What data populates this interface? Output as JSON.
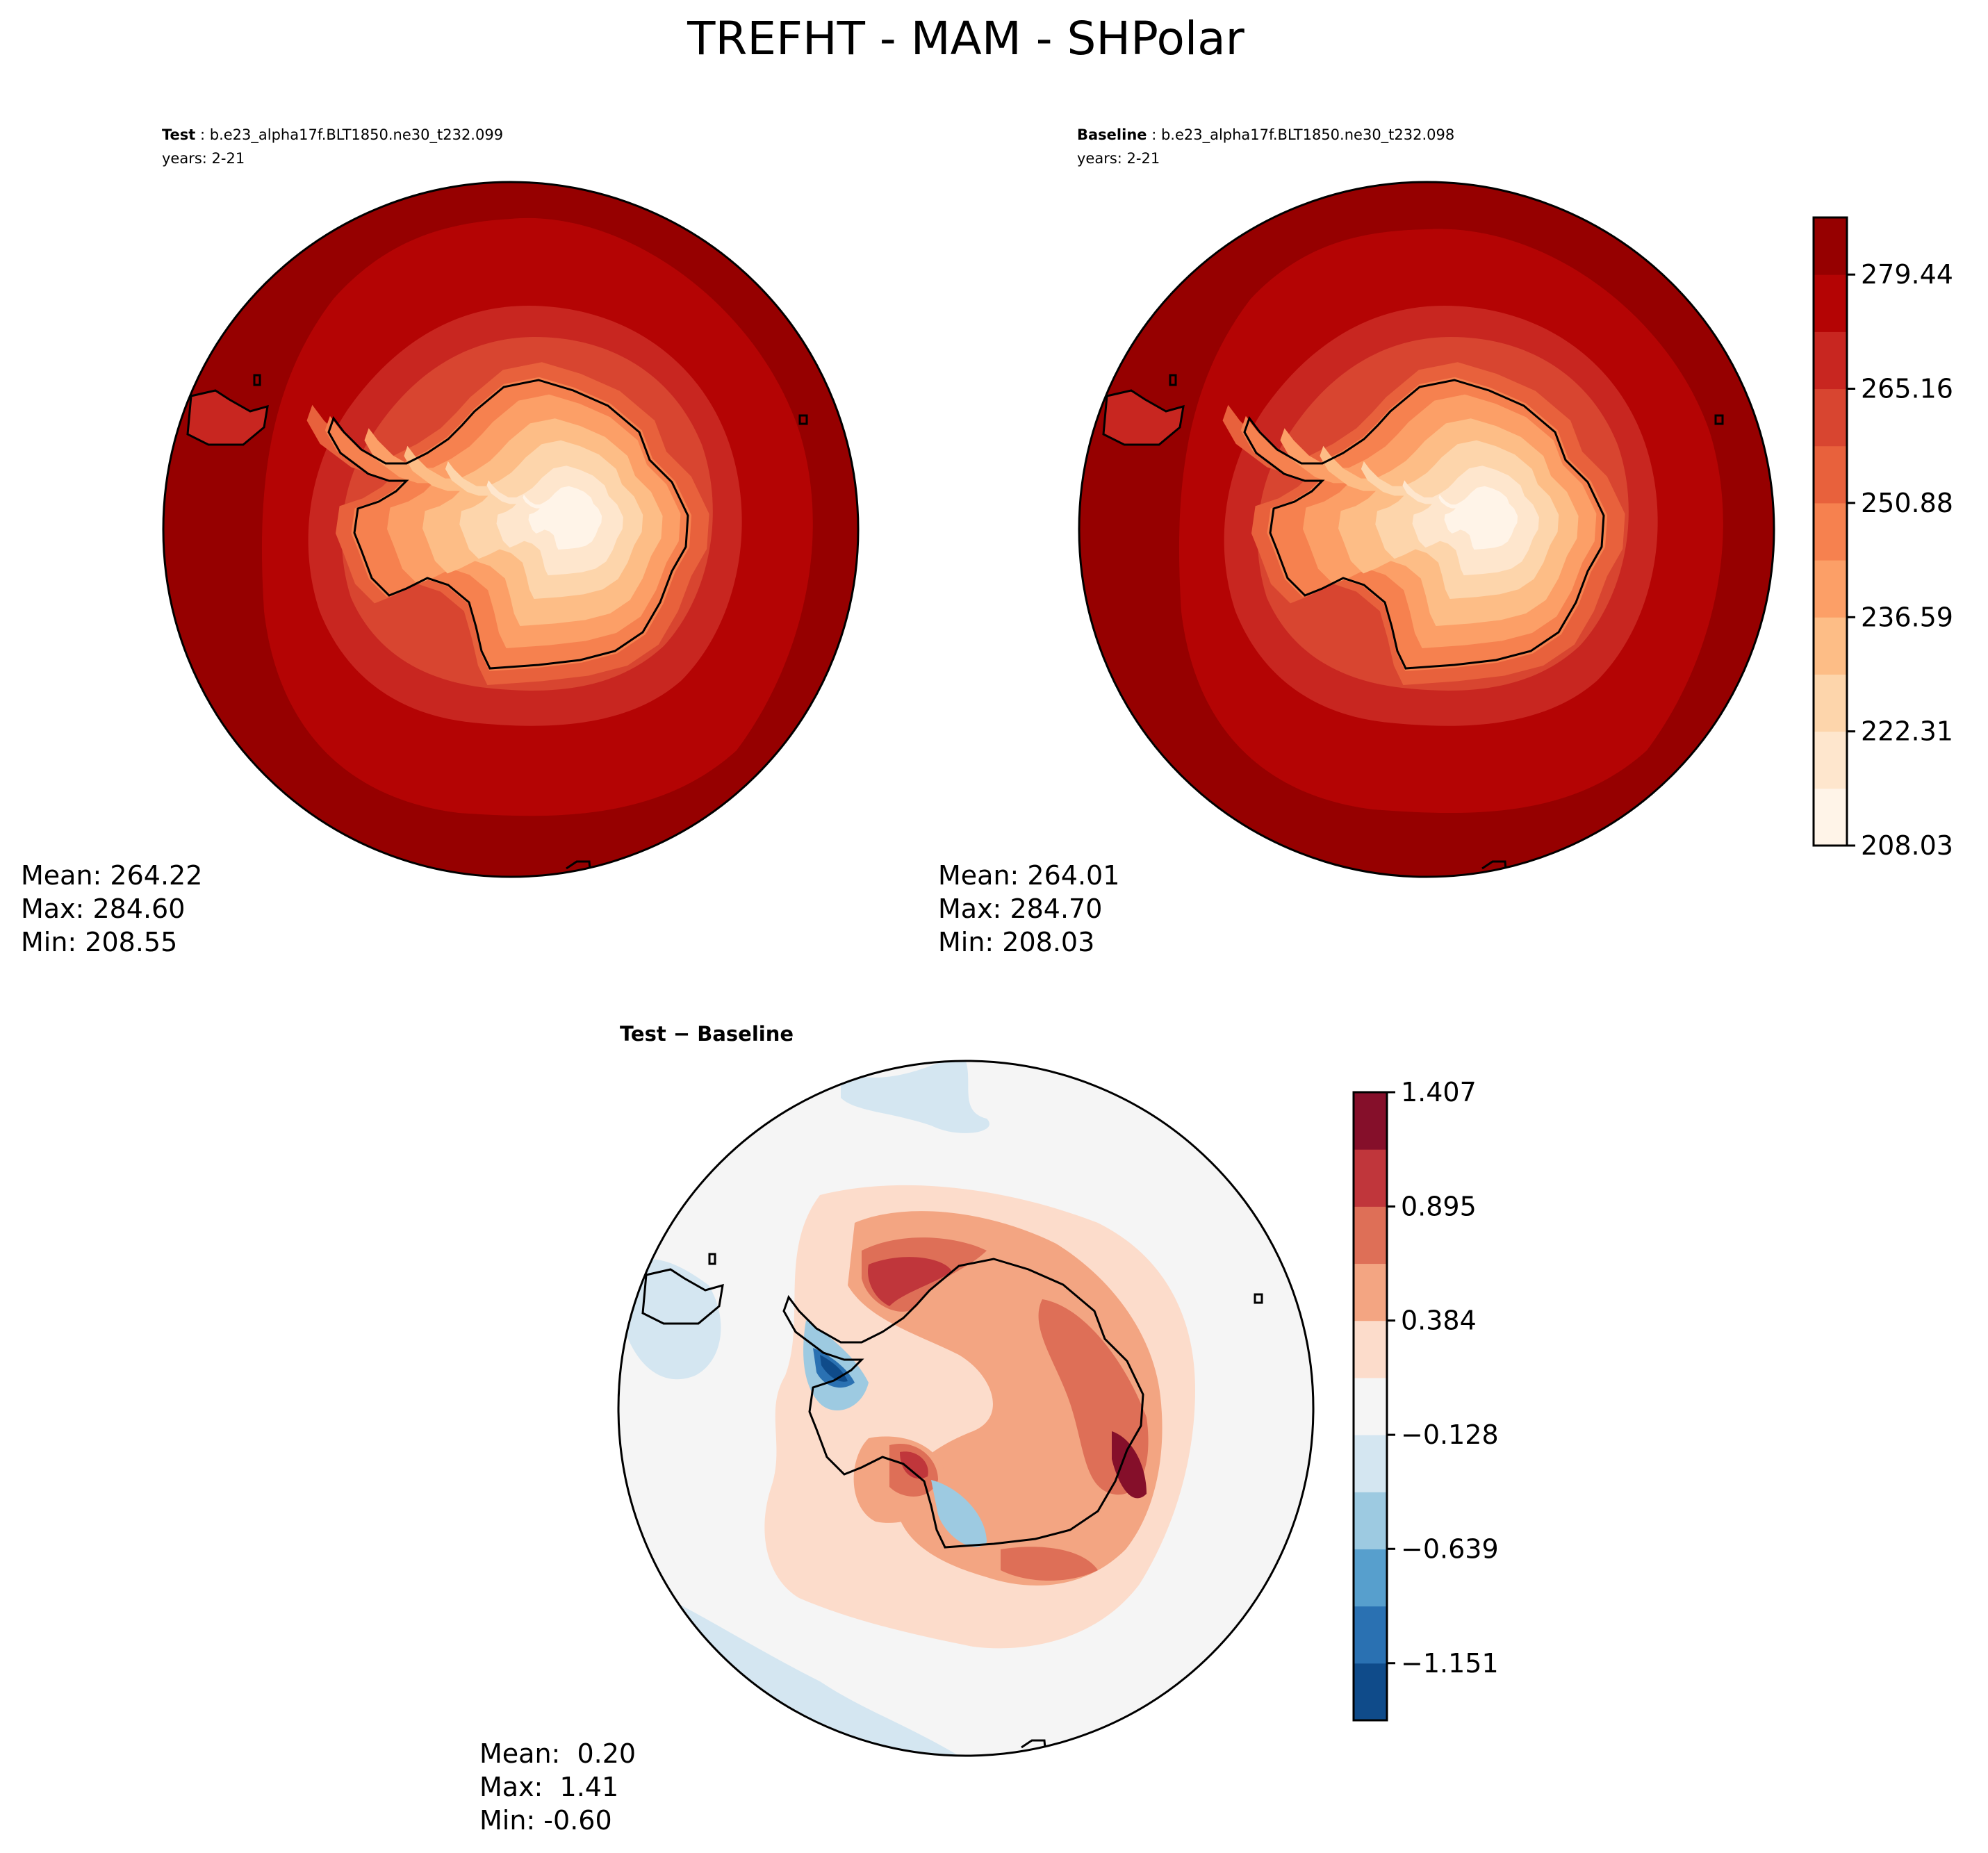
{
  "figure": {
    "title": "TREFHT - MAM - SHPolar"
  },
  "panels": {
    "test": {
      "label_bold": "Test",
      "label_rest": " : b.e23_alpha17f.BLT1850.ne30_t232.099",
      "years": "years: 2-21",
      "stats": [
        "Mean: 264.22",
        "Max: 284.60",
        "Min: 208.55"
      ]
    },
    "baseline": {
      "label_bold": "Baseline",
      "label_rest": " : b.e23_alpha17f.BLT1850.ne30_t232.098",
      "years": "years: 2-21",
      "stats": [
        "Mean: 264.01",
        "Max: 284.70",
        "Min: 208.03"
      ]
    },
    "diff": {
      "title": "Test − Baseline",
      "stats": [
        "Mean:  0.20",
        "Max:  1.41",
        "Min: -0.60"
      ]
    }
  },
  "chart_data": [
    {
      "type": "filled-contour-map",
      "projection": "south-polar-stereographic",
      "panel": "Test",
      "variable": "TREFHT",
      "season": "MAM",
      "region": "SHPolar",
      "case": "b.e23_alpha17f.BLT1850.ne30_t232.099",
      "years": "2-21",
      "mean": 264.22,
      "max": 284.6,
      "min": 208.55
    },
    {
      "type": "filled-contour-map",
      "projection": "south-polar-stereographic",
      "panel": "Baseline",
      "variable": "TREFHT",
      "season": "MAM",
      "region": "SHPolar",
      "case": "b.e23_alpha17f.BLT1850.ne30_t232.098",
      "years": "2-21",
      "mean": 264.01,
      "max": 284.7,
      "min": 208.03
    },
    {
      "type": "filled-contour-map",
      "projection": "south-polar-stereographic",
      "panel": "Test − Baseline",
      "mean": 0.2,
      "max": 1.41,
      "min": -0.6
    }
  ],
  "colorbars": {
    "main": {
      "tick_labels": [
        "279.44",
        "265.16",
        "250.88",
        "236.59",
        "222.31",
        "208.03"
      ],
      "tick_values": [
        279.44,
        265.16,
        250.88,
        236.59,
        222.31,
        208.03
      ],
      "range": [
        208.03,
        286.58
      ],
      "colors": [
        "#fff5eb",
        "#fee6ce",
        "#fdd0a2",
        "#fdae6b",
        "#fd8d3c",
        "#f16913",
        "#e34a33",
        "#d7301f",
        "#b30000",
        "#7f0000",
        "#8b0000"
      ],
      "levels": [
        "#fff4e8",
        "#fee6cd",
        "#fdd5ab",
        "#fdbd86",
        "#fc9f67",
        "#f6814f",
        "#e8613c",
        "#d84530",
        "#c82620",
        "#b40404",
        "#960000"
      ]
    },
    "diff": {
      "tick_labels": [
        "1.407",
        "0.895",
        "0.384",
        "−0.128",
        "−0.639",
        "−1.151"
      ],
      "tick_values": [
        1.407,
        0.895,
        0.384,
        -0.128,
        -0.639,
        -1.151
      ],
      "range": [
        -1.407,
        1.407
      ],
      "levels": [
        "#0f4b8a",
        "#2a71b2",
        "#579fcd",
        "#9dcae1",
        "#d4e6f1",
        "#f5f5f5",
        "#fcdccb",
        "#f3a582",
        "#de6f57",
        "#c0363b",
        "#850f2a"
      ]
    }
  }
}
